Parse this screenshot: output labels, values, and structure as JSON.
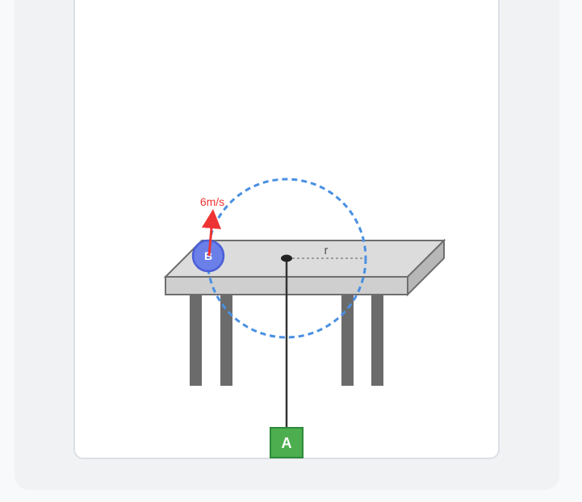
{
  "diagram": {
    "puck_label": "B",
    "velocity_label": "6m/s",
    "radius_label": "r",
    "mass_label": "A",
    "colors": {
      "table_top": "#dcdcdc",
      "table_front": "#cfcfcf",
      "table_side": "#b7b7b7",
      "table_edge": "#6e6e6e",
      "legs": "#6b6b6b",
      "circle_path": "#4a90e2",
      "puck_fill": "#6b7fe8",
      "puck_stroke": "#4a5fd6",
      "velocity_arrow": "#ee3333",
      "string": "#333333",
      "block_fill": "#4cae4f",
      "block_stroke": "#2e8b3a"
    }
  }
}
